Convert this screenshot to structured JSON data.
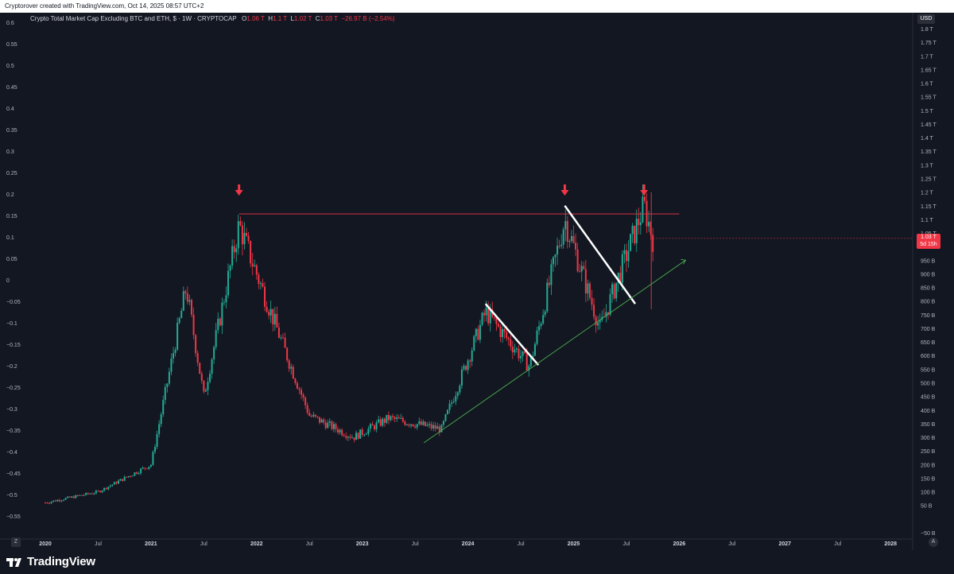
{
  "header": {
    "credit": "Cryptorover created with TradingView.com, Oct 14, 2025 08:57 UTC+2"
  },
  "legend": {
    "title": "Crypto Total Market Cap Excluding BTC and ETH, $ · 1W · CRYPTOCAP",
    "o_label": "O",
    "o_value": "1.06 T",
    "h_label": "H",
    "h_value": "1.1 T",
    "l_label": "L",
    "l_value": "1.02 T",
    "c_label": "C",
    "c_value": "1.03 T",
    "change": "−26.97 B (−2.54%)"
  },
  "right_axis": {
    "currency": "USD",
    "last_price": "1.03 T",
    "countdown": "5d 15h"
  },
  "buttons": {
    "zoom": "Z",
    "auto": "A"
  },
  "footer": {
    "brand": "TradingView"
  },
  "colors": {
    "background": "#131722",
    "up": "#22ab94",
    "down": "#f23645",
    "resistance": "#f23645",
    "trendline_white": "#ffffff",
    "support": "#4caf50"
  },
  "chart_data": {
    "type": "candlestick",
    "title": "Crypto Total Market Cap Excluding BTC and ETH, $ · 1W · CRYPTOCAP",
    "x_ticks": [
      "2020",
      "Jul",
      "2021",
      "Jul",
      "2022",
      "Jul",
      "2023",
      "Jul",
      "2024",
      "Jul",
      "2025",
      "Jul",
      "2026",
      "Jul",
      "2027",
      "Jul",
      "2028"
    ],
    "left_ticks": [
      "0.6",
      "0.55",
      "0.5",
      "0.45",
      "0.4",
      "0.35",
      "0.3",
      "0.25",
      "0.2",
      "0.15",
      "0.1",
      "0.05",
      "0",
      "−0.05",
      "−0.1",
      "−0.15",
      "−0.2",
      "−0.25",
      "−0.3",
      "−0.35",
      "−0.4",
      "−0.45",
      "−0.5",
      "−0.55"
    ],
    "right_ticks": [
      "1.8 T",
      "1.75 T",
      "1.7 T",
      "1.65 T",
      "1.6 T",
      "1.55 T",
      "1.5 T",
      "1.45 T",
      "1.4 T",
      "1.35 T",
      "1.3 T",
      "1.25 T",
      "1.2 T",
      "1.15 T",
      "1.1 T",
      "1.05 T",
      "1 T",
      "950 B",
      "900 B",
      "850 B",
      "800 B",
      "750 B",
      "700 B",
      "650 B",
      "600 B",
      "550 B",
      "500 B",
      "450 B",
      "400 B",
      "350 B",
      "300 B",
      "250 B",
      "200 B",
      "150 B",
      "100 B",
      "50 B",
      "−50 B"
    ],
    "y_range_usd": [
      -50000000000,
      1800000000000
    ],
    "key_points": [
      {
        "date": "2020-01",
        "usd_b": 60
      },
      {
        "date": "2020-07",
        "usd_b": 100
      },
      {
        "date": "2021-01",
        "usd_b": 200
      },
      {
        "date": "2021-05",
        "usd_b": 850
      },
      {
        "date": "2021-07",
        "usd_b": 450
      },
      {
        "date": "2021-11",
        "usd_b": 1080
      },
      {
        "date": "2022-01",
        "usd_b": 900
      },
      {
        "date": "2022-05",
        "usd_b": 550
      },
      {
        "date": "2022-07",
        "usd_b": 380
      },
      {
        "date": "2022-12",
        "usd_b": 300
      },
      {
        "date": "2023-04",
        "usd_b": 370
      },
      {
        "date": "2023-10",
        "usd_b": 330
      },
      {
        "date": "2024-03",
        "usd_b": 760
      },
      {
        "date": "2024-08",
        "usd_b": 560
      },
      {
        "date": "2024-12",
        "usd_b": 1100
      },
      {
        "date": "2025-04",
        "usd_b": 700
      },
      {
        "date": "2025-09",
        "usd_b": 1150
      },
      {
        "date": "2025-10",
        "usd_b": 1030
      }
    ],
    "annotations": [
      {
        "kind": "horizontal_resistance",
        "usd_b": 1120,
        "from": "2021-11",
        "to": "2026-01"
      },
      {
        "kind": "down_arrow",
        "date": "2021-11"
      },
      {
        "kind": "down_arrow",
        "date": "2024-12"
      },
      {
        "kind": "down_arrow",
        "date": "2025-09"
      },
      {
        "kind": "descending_trendline",
        "from": {
          "date": "2024-03",
          "usd_b": 790
        },
        "to": {
          "date": "2024-09",
          "usd_b": 565
        }
      },
      {
        "kind": "descending_trendline",
        "from": {
          "date": "2024-12",
          "usd_b": 1150
        },
        "to": {
          "date": "2025-08",
          "usd_b": 790
        }
      },
      {
        "kind": "ascending_support",
        "from": {
          "date": "2023-08",
          "usd_b": 280
        },
        "to": {
          "date": "2026-01",
          "usd_b": 950
        }
      }
    ]
  }
}
